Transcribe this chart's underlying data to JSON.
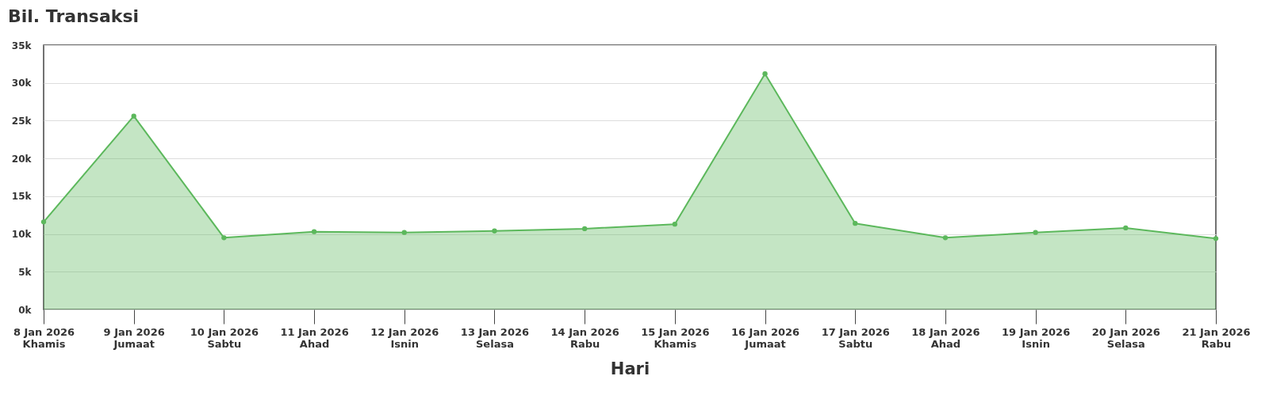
{
  "chart_data": {
    "type": "area",
    "title": "Bil. Transaksi",
    "xlabel": "Hari",
    "categories": [
      "8 Jan 2026\nKhamis",
      "9 Jan 2026\nJumaat",
      "10 Jan 2026\nSabtu",
      "11 Jan 2026\nAhad",
      "12 Jan 2026\nIsnin",
      "13 Jan 2026\nSelasa",
      "14 Jan 2026\nRabu",
      "15 Jan 2026\nKhamis",
      "16 Jan 2026\nJumaat",
      "17 Jan 2026\nSabtu",
      "18 Jan 2026\nAhad",
      "19 Jan 2026\nIsnin",
      "20 Jan 2026\nSelasa",
      "21 Jan 2026\nRabu"
    ],
    "series": [
      {
        "color": "#5cb85c",
        "values": [
          11600,
          25600,
          9500,
          10300,
          10200,
          10400,
          10700,
          11300,
          31200,
          11400,
          9500,
          10200,
          10800,
          9400
        ]
      }
    ],
    "ylim": [
      0,
      35000
    ],
    "yticks": [
      {
        "value": 0,
        "label": "0k"
      },
      {
        "value": 5000,
        "label": "5k"
      },
      {
        "value": 10000,
        "label": "10k"
      },
      {
        "value": 15000,
        "label": "15k"
      },
      {
        "value": 20000,
        "label": "20k"
      },
      {
        "value": 25000,
        "label": "25k"
      },
      {
        "value": 30000,
        "label": "30k"
      },
      {
        "value": 35000,
        "label": "35k"
      }
    ],
    "grid": "y",
    "marker": "circle"
  }
}
